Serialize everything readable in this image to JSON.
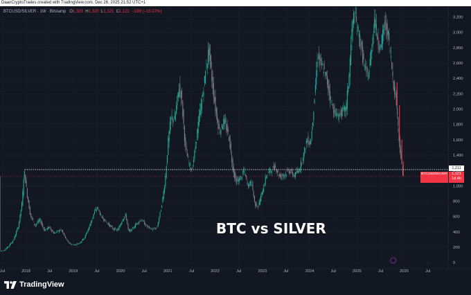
{
  "attribution": "DaanCryptoTrades created with TradingView.com, Dec 26, 2025 21:52 UTC+1",
  "legend": {
    "symbol": "BTCUSD/SILVER · 1W · Bitstamp",
    "open_label": "O",
    "open_value": "1,320",
    "high_label": "H",
    "high_value": "1,320",
    "low_label": "L",
    "low_value": "1,121",
    "close_label": "C",
    "close_value": "1,121",
    "change": "−199 (−15.07%)"
  },
  "overlay_title": "BTC vs SILVER",
  "price_tag": {
    "symbol": "BTCUSD/SILVER",
    "value": "1,121",
    "countdown": "1d 4h"
  },
  "level_label": "1,211",
  "branding": "TradingView",
  "icon": "tradingview-logo-icon",
  "colors": {
    "background": "#131722",
    "up": "#26a69a",
    "down": "#f23645",
    "up_candle": "#22ab94",
    "down_candle": "#787b86"
  },
  "chart_data": {
    "type": "candlestick",
    "series_name": "BTCUSD/SILVER",
    "timeframe": "1W",
    "y_ticks": [
      0,
      200,
      400,
      600,
      800,
      1000,
      1200,
      1400,
      1600,
      1800,
      2000,
      2200,
      2400,
      2600,
      2800,
      3000,
      3200
    ],
    "y_tick_labels": [
      "0",
      "200",
      "400",
      "600",
      "800",
      "1,000",
      "1,200",
      "1,400",
      "1,600",
      "1,800",
      "2,000",
      "2,200",
      "2,400",
      "2,600",
      "2,800",
      "3,000",
      "3,200"
    ],
    "ylim": [
      -80,
      3330
    ],
    "x_tick_labels": [
      "Jul",
      "2018",
      "Jul",
      "2019",
      "Jul",
      "2020",
      "Jul",
      "2021",
      "Jul",
      "2022",
      "Jul",
      "2023",
      "Jul",
      "2024",
      "Jul",
      "2025",
      "Jul",
      "2026",
      "Jul"
    ],
    "x_tick_years": [
      2017.5,
      2018.0,
      2018.5,
      2019.0,
      2019.5,
      2020.0,
      2020.5,
      2021.0,
      2021.5,
      2022.0,
      2022.5,
      2023.0,
      2023.5,
      2024.0,
      2024.5,
      2025.0,
      2025.5,
      2026.0,
      2026.5
    ],
    "xlim": [
      2017.45,
      2026.93
    ],
    "horizontal_level": 1211,
    "last_price": 1121,
    "grid": true,
    "path": [
      [
        2017.45,
        150
      ],
      [
        2017.55,
        160
      ],
      [
        2017.65,
        220
      ],
      [
        2017.75,
        300
      ],
      [
        2017.85,
        480
      ],
      [
        2017.93,
        800
      ],
      [
        2017.97,
        1211
      ],
      [
        2018.03,
        900
      ],
      [
        2018.1,
        620
      ],
      [
        2018.2,
        480
      ],
      [
        2018.3,
        560
      ],
      [
        2018.4,
        420
      ],
      [
        2018.5,
        460
      ],
      [
        2018.6,
        380
      ],
      [
        2018.75,
        430
      ],
      [
        2018.88,
        280
      ],
      [
        2018.95,
        240
      ],
      [
        2019.05,
        230
      ],
      [
        2019.15,
        260
      ],
      [
        2019.25,
        330
      ],
      [
        2019.35,
        470
      ],
      [
        2019.45,
        650
      ],
      [
        2019.52,
        720
      ],
      [
        2019.6,
        600
      ],
      [
        2019.75,
        500
      ],
      [
        2019.85,
        440
      ],
      [
        2019.95,
        420
      ],
      [
        2020.05,
        560
      ],
      [
        2020.12,
        620
      ],
      [
        2020.18,
        400
      ],
      [
        2020.25,
        430
      ],
      [
        2020.35,
        510
      ],
      [
        2020.45,
        560
      ],
      [
        2020.55,
        480
      ],
      [
        2020.68,
        430
      ],
      [
        2020.78,
        450
      ],
      [
        2020.88,
        750
      ],
      [
        2020.95,
        1050
      ],
      [
        2021.02,
        1600
      ],
      [
        2021.08,
        1900
      ],
      [
        2021.15,
        1850
      ],
      [
        2021.25,
        2300
      ],
      [
        2021.3,
        2150
      ],
      [
        2021.38,
        1500
      ],
      [
        2021.45,
        1300
      ],
      [
        2021.52,
        1200
      ],
      [
        2021.58,
        1450
      ],
      [
        2021.65,
        1800
      ],
      [
        2021.75,
        2200
      ],
      [
        2021.82,
        2550
      ],
      [
        2021.88,
        2780
      ],
      [
        2021.93,
        2450
      ],
      [
        2022.02,
        2000
      ],
      [
        2022.1,
        1700
      ],
      [
        2022.2,
        1850
      ],
      [
        2022.3,
        1650
      ],
      [
        2022.38,
        1250
      ],
      [
        2022.45,
        1050
      ],
      [
        2022.55,
        1100
      ],
      [
        2022.62,
        1200
      ],
      [
        2022.7,
        1000
      ],
      [
        2022.78,
        1050
      ],
      [
        2022.85,
        760
      ],
      [
        2022.92,
        730
      ],
      [
        2023.02,
        950
      ],
      [
        2023.1,
        1150
      ],
      [
        2023.18,
        1200
      ],
      [
        2023.28,
        1250
      ],
      [
        2023.38,
        1120
      ],
      [
        2023.48,
        1150
      ],
      [
        2023.58,
        1200
      ],
      [
        2023.68,
        1130
      ],
      [
        2023.78,
        1200
      ],
      [
        2023.88,
        1400
      ],
      [
        2023.95,
        1600
      ],
      [
        2024.03,
        1550
      ],
      [
        2024.12,
        2200
      ],
      [
        2024.18,
        2750
      ],
      [
        2024.22,
        2600
      ],
      [
        2024.32,
        2500
      ],
      [
        2024.4,
        2300
      ],
      [
        2024.48,
        2050
      ],
      [
        2024.58,
        1900
      ],
      [
        2024.68,
        1950
      ],
      [
        2024.78,
        2000
      ],
      [
        2024.85,
        2500
      ],
      [
        2024.9,
        3000
      ],
      [
        2024.95,
        3250
      ],
      [
        2025.02,
        3050
      ],
      [
        2025.1,
        2800
      ],
      [
        2025.18,
        2500
      ],
      [
        2025.25,
        2420
      ],
      [
        2025.32,
        2800
      ],
      [
        2025.38,
        3200
      ],
      [
        2025.45,
        2900
      ],
      [
        2025.52,
        2800
      ],
      [
        2025.58,
        3100
      ],
      [
        2025.65,
        3050
      ],
      [
        2025.72,
        2700
      ],
      [
        2025.78,
        2350
      ],
      [
        2025.85,
        2050
      ],
      [
        2025.9,
        1600
      ],
      [
        2025.95,
        1320
      ],
      [
        2025.98,
        1121
      ]
    ]
  }
}
